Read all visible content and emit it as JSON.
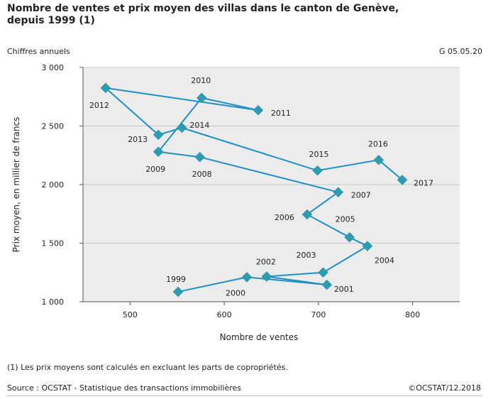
{
  "header": {
    "title_line1": "Nombre de ventes et prix moyen des villas dans le canton de Genève,",
    "title_line2": "depuis 1999 (1)",
    "subtitle_left": "Chiffres annuels",
    "subtitle_right": "G 05.05.20"
  },
  "footer": {
    "note": "(1) Les prix moyens sont calculés en excluant les parts de copropriétés.",
    "source": "Source : OCSTAT - Statistique des transactions immobilières",
    "copyright": "©OCSTAT/12.2018"
  },
  "colors": {
    "series": "#1f8fc6",
    "marker": "#2e9cb0",
    "plot_bg": "#ececec",
    "gridline": "#c8c8c8"
  },
  "chart_data": {
    "type": "scatter",
    "connected": true,
    "xlabel": "Nombre de ventes",
    "ylabel": "Prix moyen, en millier de francs",
    "xlim": [
      450,
      850
    ],
    "ylim": [
      1000,
      3000
    ],
    "xticks": [
      500,
      600,
      700,
      800
    ],
    "yticks": [
      1000,
      1500,
      2000,
      2500,
      3000
    ],
    "ytick_labels": [
      "1 000",
      "1 500",
      "2 000",
      "2 500",
      "3 000"
    ],
    "xtick_labels": [
      "500",
      "600",
      "700",
      "800"
    ],
    "grid": "horizontal",
    "legend": "none",
    "points": [
      {
        "label": "1999",
        "x": 551,
        "y": 1085
      },
      {
        "label": "2000",
        "x": 624,
        "y": 1210
      },
      {
        "label": "2001",
        "x": 709,
        "y": 1145
      },
      {
        "label": "2002",
        "x": 645,
        "y": 1215
      },
      {
        "label": "2003",
        "x": 705,
        "y": 1250
      },
      {
        "label": "2004",
        "x": 752,
        "y": 1475
      },
      {
        "label": "2005",
        "x": 733,
        "y": 1550
      },
      {
        "label": "2006",
        "x": 688,
        "y": 1745
      },
      {
        "label": "2007",
        "x": 721,
        "y": 1935
      },
      {
        "label": "2008",
        "x": 574,
        "y": 2235
      },
      {
        "label": "2009",
        "x": 530,
        "y": 2280
      },
      {
        "label": "2010",
        "x": 576,
        "y": 2740
      },
      {
        "label": "2011",
        "x": 636,
        "y": 2635
      },
      {
        "label": "2012",
        "x": 474,
        "y": 2825
      },
      {
        "label": "2013",
        "x": 530,
        "y": 2425
      },
      {
        "label": "2014",
        "x": 555,
        "y": 2485
      },
      {
        "label": "2015",
        "x": 699,
        "y": 2120
      },
      {
        "label": "2016",
        "x": 764,
        "y": 2210
      },
      {
        "label": "2017",
        "x": 789,
        "y": 2040
      }
    ]
  }
}
